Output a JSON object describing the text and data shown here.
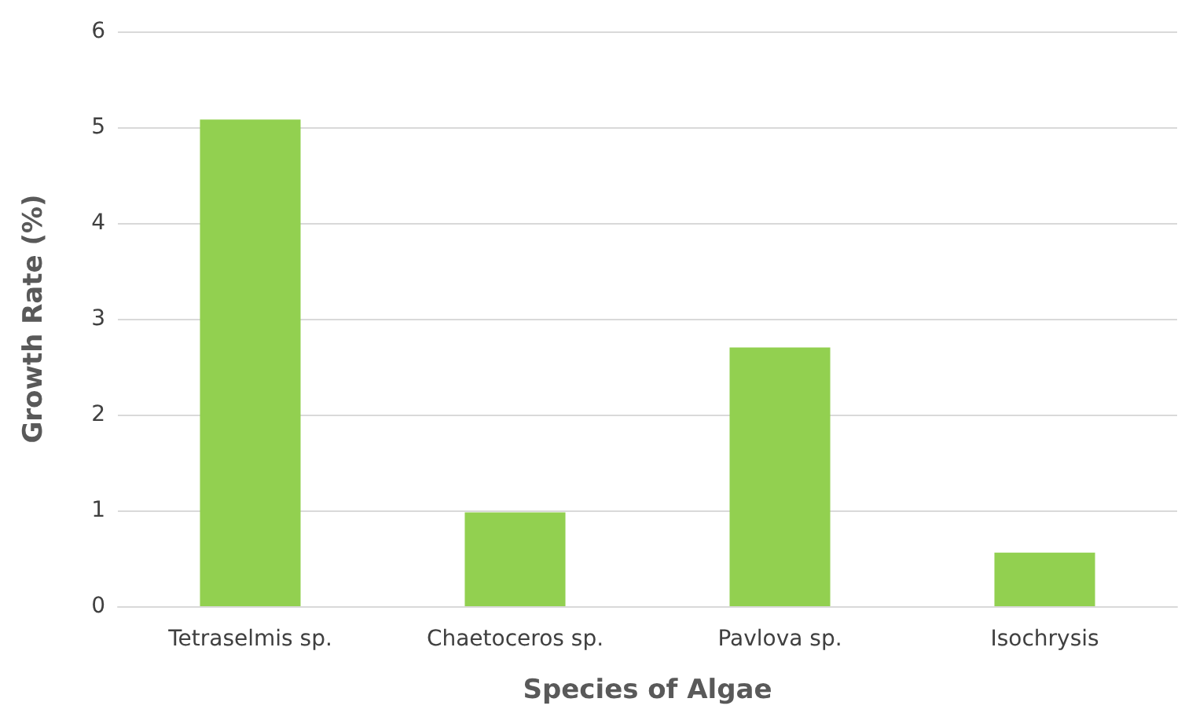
{
  "chart_data": {
    "type": "bar",
    "xlabel": "Species of Algae",
    "ylabel": "Growth Rate (%)",
    "categories": [
      "Tetraselmis sp.",
      "Chaetoceros sp.",
      "Pavlova sp.",
      "Isochrysis"
    ],
    "values": [
      5.08,
      0.98,
      2.7,
      0.56
    ],
    "color": "#92d050",
    "ylim": [
      0,
      6
    ],
    "yticks": [
      0,
      1,
      2,
      3,
      4,
      5,
      6
    ],
    "grid": "y"
  }
}
